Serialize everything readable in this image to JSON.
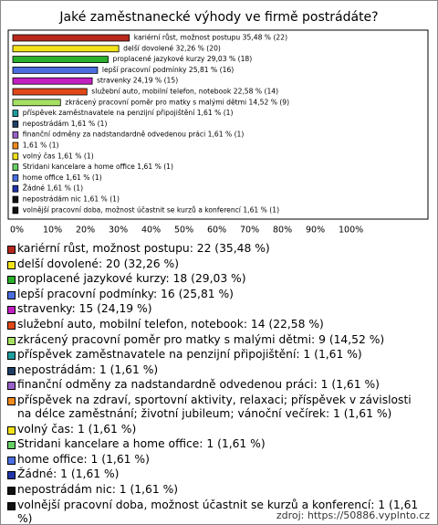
{
  "chart_data": {
    "type": "bar",
    "orientation": "horizontal",
    "title": "Jaké zaměstnanecké výhody ve firmě postrádáte?",
    "values": [
      35.48,
      32.26,
      29.03,
      25.81,
      24.19,
      22.58,
      14.52,
      1.61,
      1.61,
      1.61,
      1.61,
      1.61,
      1.61,
      1.61,
      1.61,
      1.61,
      1.61
    ],
    "value_labels": [
      "kariérní růst, možnost postupu 35,48 % (22)",
      "delší dovolené 32,26 % (20)",
      "proplacené jazykové kurzy 29,03 % (18)",
      "lepší pracovní podmínky 25,81 % (16)",
      "stravenky 24,19 % (15)",
      "služební auto, mobilní telefon, notebook 22,58 % (14)",
      "zkrácený pracovní poměr pro matky s malými dětmi 14,52 % (9)",
      "příspěvek zaměstnavatele na penzijní připojištění 1,61 % (1)",
      "nepostrádám 1,61 % (1)",
      "finanční odměny za nadstandardně odvedenou práci 1,61 % (1)",
      "1,61 % (1)",
      "volný čas 1,61 % (1)",
      "Stridani kancelare a home office 1,61 % (1)",
      "home office 1,61 % (1)",
      "Žádné 1,61 % (1)",
      "nepostrádám nic 1,61 % (1)",
      "volnější pracovní doba, možnost účastnit se kurzů a konferencí 1,61 % (1)"
    ],
    "legend_labels": [
      "kariérní růst, možnost postupu: 22 (35,48 %)",
      "delší dovolené: 20 (32,26 %)",
      "proplacené jazykové kurzy: 18 (29,03 %)",
      "lepší pracovní podmínky: 16 (25,81 %)",
      "stravenky: 15 (24,19 %)",
      "služební auto, mobilní telefon, notebook: 14 (22,58 %)",
      "zkrácený pracovní poměr pro matky s malými dětmi: 9 (14,52 %)",
      "příspěvek zaměstnavatele na penzijní připojištění: 1 (1,61 %)",
      "nepostrádám: 1 (1,61 %)",
      "finanční odměny za nadstandardně odvedenou práci: 1 (1,61 %)",
      "příspěvek na zdraví, sportovní aktivity, relaxaci; příspěvek v závislosti na délce zaměstnání; životní jubileum; vánoční večírek: 1 (1,61 %)",
      "volný čas: 1 (1,61 %)",
      "Stridani kancelare a home office: 1 (1,61 %)",
      "home office: 1 (1,61 %)",
      "Žádné: 1 (1,61 %)",
      "nepostrádám nic: 1 (1,61 %)",
      "volnější pracovní doba, možnost účastnit se kurzů a konferencí: 1 (1,61 %)"
    ],
    "colors": [
      "#b8281c",
      "#f2e21a",
      "#2bb02b",
      "#4a6ee0",
      "#c21fc2",
      "#e0481a",
      "#a6e063",
      "#1f9e9e",
      "#1d3f66",
      "#9a62c8",
      "#f08a1e",
      "#f2e21a",
      "#66d066",
      "#4a6ee0",
      "#2234a8",
      "#111111",
      "#111111"
    ],
    "xlim": [
      0,
      100
    ],
    "xticks": [
      {
        "value": 0,
        "label": "0%"
      },
      {
        "value": 10,
        "label": "10%"
      },
      {
        "value": 20,
        "label": "20%"
      },
      {
        "value": 30,
        "label": "30%"
      },
      {
        "value": 40,
        "label": "40%"
      },
      {
        "value": 50,
        "label": "50%"
      },
      {
        "value": 60,
        "label": "60%"
      },
      {
        "value": 70,
        "label": "70%"
      },
      {
        "value": 80,
        "label": "80%"
      },
      {
        "value": 90,
        "label": "90%"
      },
      {
        "value": 100,
        "label": "100%"
      }
    ],
    "source": "zdroj: https://50886.vyplnto.cz"
  }
}
